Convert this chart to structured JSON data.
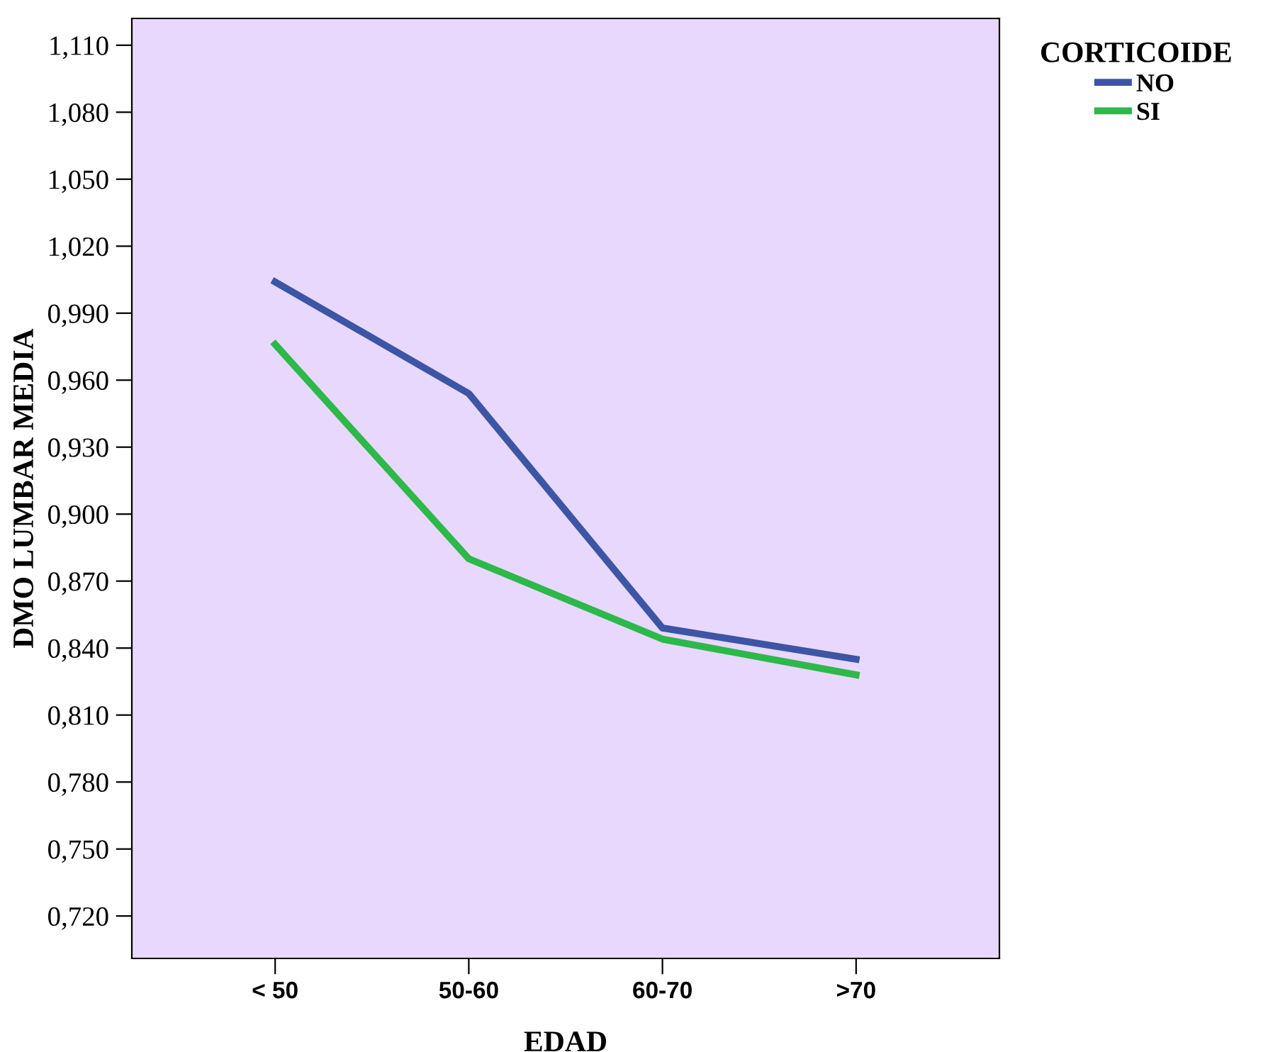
{
  "chart_data": {
    "type": "line",
    "xlabel": "EDAD",
    "ylabel": "DMO LUMBAR MEDIA",
    "legend_title": "CORTICOIDE",
    "legend": "top right",
    "categories": [
      "< 50",
      "50-60",
      "60-70",
      ">70"
    ],
    "series": [
      {
        "name": "NO",
        "color": "#3c55a5",
        "values": [
          1.004,
          0.954,
          0.849,
          0.835
        ]
      },
      {
        "name": "SI",
        "color": "#2db84a",
        "values": [
          0.976,
          0.88,
          0.844,
          0.828
        ]
      }
    ],
    "ylim": [
      0.701,
      1.122
    ],
    "yticks": [
      {
        "value": 0.72,
        "label": "0,720"
      },
      {
        "value": 0.75,
        "label": "0,750"
      },
      {
        "value": 0.78,
        "label": "0,780"
      },
      {
        "value": 0.81,
        "label": "0,810"
      },
      {
        "value": 0.84,
        "label": "0,840"
      },
      {
        "value": 0.87,
        "label": "0,870"
      },
      {
        "value": 0.9,
        "label": "0,900"
      },
      {
        "value": 0.93,
        "label": "0,930"
      },
      {
        "value": 0.96,
        "label": "0,960"
      },
      {
        "value": 0.99,
        "label": "0,990"
      },
      {
        "value": 1.02,
        "label": "1,020"
      },
      {
        "value": 1.05,
        "label": "1,050"
      },
      {
        "value": 1.08,
        "label": "1,080"
      },
      {
        "value": 1.11,
        "label": "1,110"
      }
    ],
    "grid": false
  }
}
